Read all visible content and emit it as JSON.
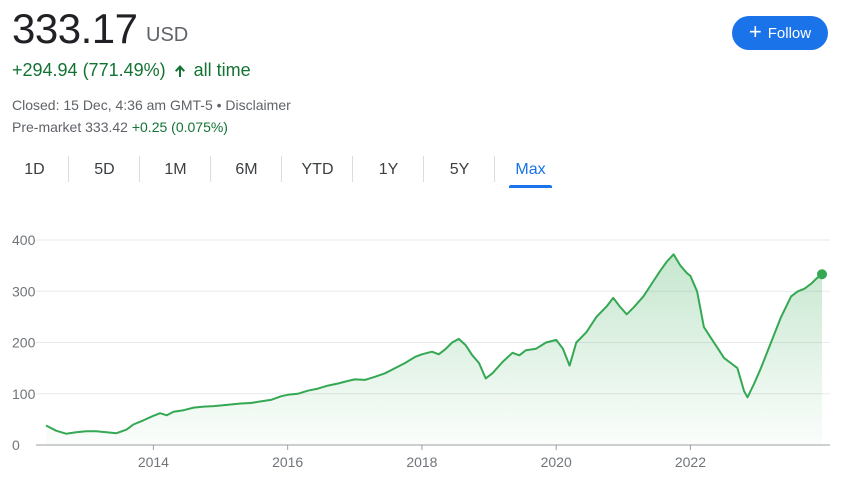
{
  "quote": {
    "price": "333.17",
    "currency": "USD",
    "change_text": "+294.94 (771.49%)",
    "period_text": "all time",
    "closed_text": "Closed: 15 Dec, 4:36 am GMT-5 • Disclaimer",
    "premarket_label": "Pre-market 333.42",
    "premarket_change": "+0.25 (0.075%)"
  },
  "follow": {
    "label": "Follow",
    "icon": "plus-icon"
  },
  "tabs": [
    "1D",
    "5D",
    "1M",
    "6M",
    "YTD",
    "1Y",
    "5Y",
    "Max"
  ],
  "active_tab": "Max",
  "colors": {
    "line": "#34a853",
    "accent": "#1a73e8",
    "positive_text": "#137333"
  },
  "chart_data": {
    "type": "area",
    "title": "",
    "xlabel": "",
    "ylabel": "",
    "xlim": [
      2012.4,
      2023.96
    ],
    "ylim": [
      0,
      400
    ],
    "yticks": [
      0,
      100,
      200,
      300,
      400
    ],
    "xticks": [
      2014,
      2016,
      2018,
      2020,
      2022
    ],
    "ytick_labels": [
      "0",
      "100",
      "200",
      "300",
      "400"
    ],
    "xtick_labels": [
      "2014",
      "2016",
      "2018",
      "2020",
      "2022"
    ],
    "grid": true,
    "series": [
      {
        "values": [
          [
            2012.4,
            38
          ],
          [
            2012.55,
            28
          ],
          [
            2012.7,
            22
          ],
          [
            2012.85,
            25
          ],
          [
            2013.0,
            27
          ],
          [
            2013.15,
            27
          ],
          [
            2013.3,
            25
          ],
          [
            2013.45,
            23
          ],
          [
            2013.6,
            30
          ],
          [
            2013.7,
            40
          ],
          [
            2013.85,
            48
          ],
          [
            2014.0,
            57
          ],
          [
            2014.1,
            62
          ],
          [
            2014.2,
            58
          ],
          [
            2014.3,
            65
          ],
          [
            2014.45,
            68
          ],
          [
            2014.6,
            73
          ],
          [
            2014.75,
            75
          ],
          [
            2014.9,
            76
          ],
          [
            2015.0,
            77
          ],
          [
            2015.15,
            79
          ],
          [
            2015.3,
            81
          ],
          [
            2015.45,
            82
          ],
          [
            2015.6,
            85
          ],
          [
            2015.75,
            88
          ],
          [
            2015.9,
            95
          ],
          [
            2016.0,
            98
          ],
          [
            2016.15,
            100
          ],
          [
            2016.3,
            106
          ],
          [
            2016.45,
            110
          ],
          [
            2016.6,
            116
          ],
          [
            2016.75,
            120
          ],
          [
            2016.9,
            125
          ],
          [
            2017.0,
            128
          ],
          [
            2017.15,
            127
          ],
          [
            2017.3,
            133
          ],
          [
            2017.45,
            140
          ],
          [
            2017.6,
            150
          ],
          [
            2017.75,
            160
          ],
          [
            2017.9,
            172
          ],
          [
            2018.0,
            177
          ],
          [
            2018.15,
            182
          ],
          [
            2018.25,
            177
          ],
          [
            2018.35,
            187
          ],
          [
            2018.45,
            200
          ],
          [
            2018.55,
            207
          ],
          [
            2018.65,
            195
          ],
          [
            2018.75,
            175
          ],
          [
            2018.85,
            160
          ],
          [
            2018.95,
            130
          ],
          [
            2019.05,
            140
          ],
          [
            2019.2,
            162
          ],
          [
            2019.35,
            180
          ],
          [
            2019.45,
            175
          ],
          [
            2019.55,
            185
          ],
          [
            2019.7,
            188
          ],
          [
            2019.85,
            200
          ],
          [
            2020.0,
            205
          ],
          [
            2020.1,
            188
          ],
          [
            2020.2,
            155
          ],
          [
            2020.3,
            200
          ],
          [
            2020.45,
            220
          ],
          [
            2020.6,
            250
          ],
          [
            2020.75,
            270
          ],
          [
            2020.85,
            287
          ],
          [
            2020.95,
            270
          ],
          [
            2021.05,
            255
          ],
          [
            2021.15,
            268
          ],
          [
            2021.3,
            290
          ],
          [
            2021.45,
            320
          ],
          [
            2021.55,
            340
          ],
          [
            2021.65,
            358
          ],
          [
            2021.75,
            372
          ],
          [
            2021.85,
            350
          ],
          [
            2021.95,
            335
          ],
          [
            2022.0,
            330
          ],
          [
            2022.1,
            300
          ],
          [
            2022.2,
            230
          ],
          [
            2022.3,
            210
          ],
          [
            2022.4,
            190
          ],
          [
            2022.5,
            170
          ],
          [
            2022.6,
            160
          ],
          [
            2022.7,
            150
          ],
          [
            2022.8,
            105
          ],
          [
            2022.85,
            93
          ],
          [
            2022.95,
            120
          ],
          [
            2023.05,
            150
          ],
          [
            2023.2,
            200
          ],
          [
            2023.35,
            250
          ],
          [
            2023.5,
            290
          ],
          [
            2023.6,
            300
          ],
          [
            2023.7,
            305
          ],
          [
            2023.8,
            315
          ],
          [
            2023.88,
            325
          ],
          [
            2023.96,
            333.17
          ]
        ]
      }
    ]
  }
}
